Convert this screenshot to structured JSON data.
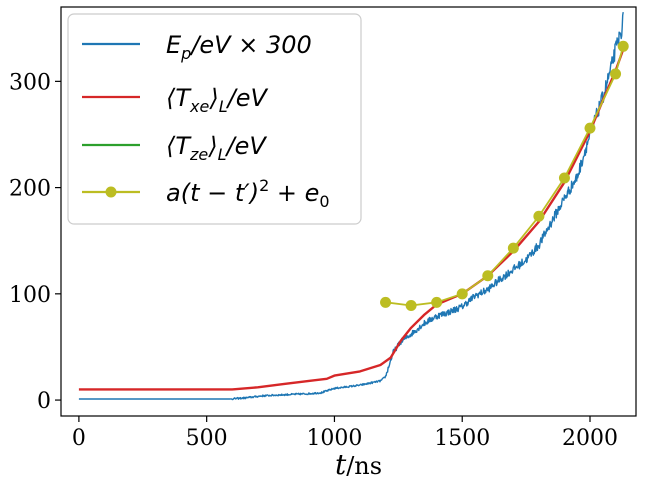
{
  "chart_data": {
    "type": "line",
    "title": "",
    "xlabel": "t/ns",
    "ylabel": "",
    "xlim": [
      -70,
      2180
    ],
    "ylim": [
      -15,
      370
    ],
    "xticks": [
      0,
      500,
      1000,
      1500,
      2000
    ],
    "yticks": [
      0,
      100,
      200,
      300
    ],
    "grid": false,
    "legend_position": "top-left",
    "series": [
      {
        "name": "E_p/eV × 300",
        "color": "#1f77b4",
        "style": "noisy-line",
        "x": [
          0,
          500,
          590,
          650,
          720,
          800,
          900,
          950,
          1000,
          1100,
          1180,
          1200,
          1230,
          1260,
          1300,
          1350,
          1400,
          1450,
          1500,
          1550,
          1600,
          1650,
          1700,
          1750,
          1800,
          1850,
          1900,
          1950,
          2000,
          2050,
          2080,
          2100,
          2120,
          2130
        ],
        "values": [
          1,
          1,
          1,
          2,
          4,
          5,
          6,
          7,
          11,
          14,
          18,
          22,
          45,
          55,
          62,
          72,
          79,
          83,
          88,
          98,
          104,
          114,
          123,
          132,
          146,
          168,
          190,
          210,
          250,
          285,
          310,
          330,
          345,
          358
        ]
      },
      {
        "name": "⟨T_xe⟩_L/eV",
        "color": "#d62728",
        "style": "line",
        "x": [
          0,
          600,
          700,
          800,
          900,
          970,
          1000,
          1100,
          1180,
          1220,
          1260,
          1300,
          1350,
          1400,
          1450,
          1500,
          1600,
          1700,
          1800,
          1900,
          2000,
          2050,
          2100,
          2130
        ],
        "values": [
          10,
          10,
          12,
          15,
          18,
          20,
          23,
          27,
          33,
          40,
          56,
          68,
          80,
          90,
          95,
          100,
          117,
          140,
          168,
          205,
          253,
          282,
          310,
          330
        ]
      },
      {
        "name": "⟨T_ze⟩_L/eV",
        "color": "#2ca02c",
        "style": "line",
        "x": [],
        "values": []
      },
      {
        "name": "a(t − t′)² + e₀",
        "color": "#bcbd22",
        "style": "line-markers",
        "x": [
          1200,
          1300,
          1400,
          1500,
          1600,
          1700,
          1800,
          1900,
          2000,
          2100,
          2130
        ],
        "values": [
          92,
          89,
          92,
          100,
          117,
          143,
          173,
          209,
          256,
          307,
          333
        ]
      }
    ]
  },
  "legend": {
    "entries": [
      {
        "mark_color": "#1f77b4",
        "marker": false,
        "base": "E",
        "sub": "p",
        "rest": "/eV × 300"
      },
      {
        "mark_color": "#d62728",
        "marker": false,
        "pre": "⟨T",
        "sub": "xe",
        "mid": "⟩",
        "sub2": "L",
        "rest": "/eV"
      },
      {
        "mark_color": "#2ca02c",
        "marker": false,
        "pre": "⟨T",
        "sub": "ze",
        "mid": "⟩",
        "sub2": "L",
        "rest": "/eV"
      },
      {
        "mark_color": "#bcbd22",
        "marker": true,
        "base": "a(t − t′)",
        "sup": "2",
        "rest": " + e",
        "sub": "0"
      }
    ]
  }
}
